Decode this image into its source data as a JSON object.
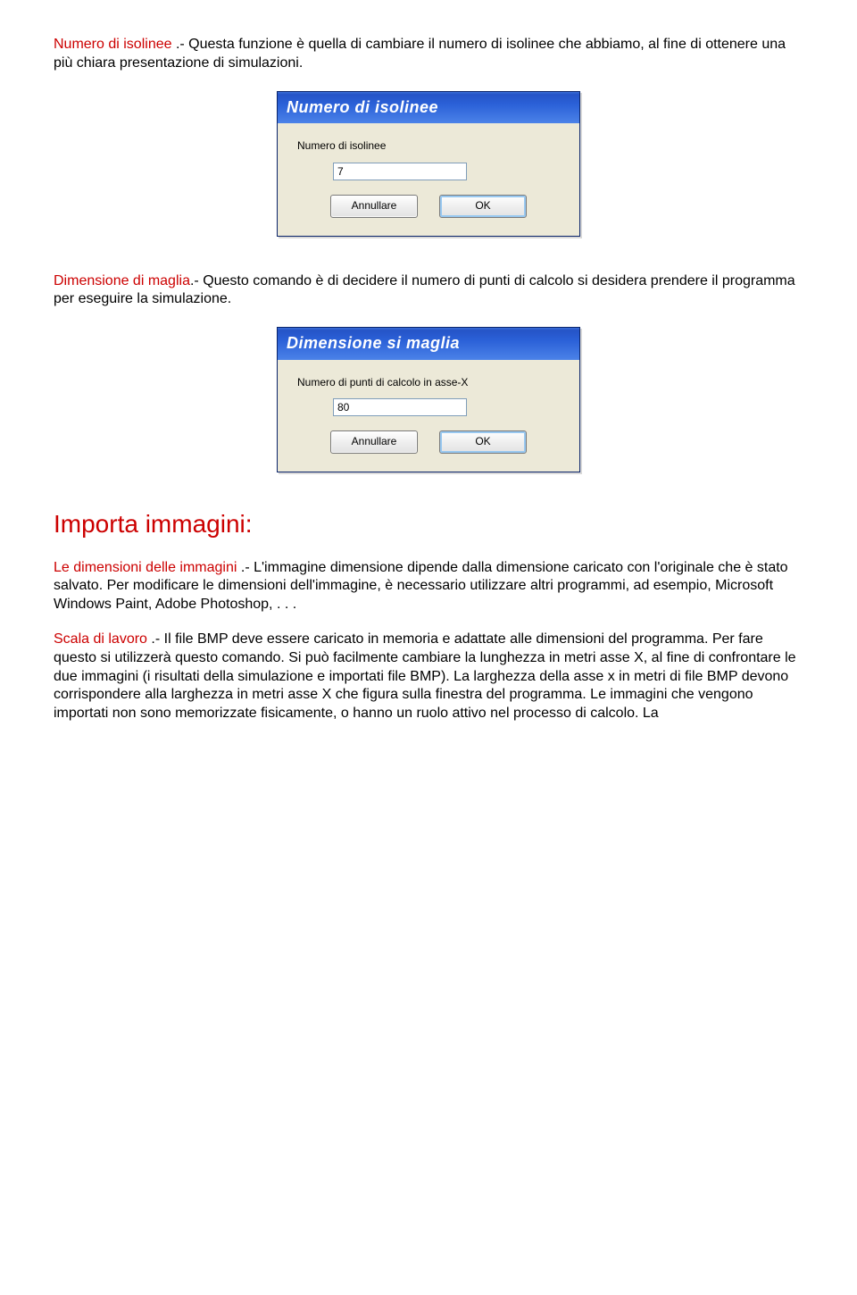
{
  "p1": {
    "term": "Numero di isolinee",
    "text": " .- Questa funzione è quella di cambiare il numero di isolinee che abbiamo, al fine di ottenere una più chiara presentazione di simulazioni."
  },
  "dialog1": {
    "title": "Numero di isolinee",
    "label": "Numero di isolinee",
    "value": "7",
    "cancel": "Annullare",
    "ok": "OK"
  },
  "p2": {
    "term": "Dimensione di maglia",
    "text": ".- Questo comando è di decidere il numero di punti di calcolo si desidera prendere il programma per eseguire la simulazione."
  },
  "dialog2": {
    "title": "Dimensione si maglia",
    "label": "Numero di punti di calcolo in asse-X",
    "value": "80",
    "cancel": "Annullare",
    "ok": "OK"
  },
  "section": "Importa immagini:",
  "p3": {
    "term": "Le dimensioni delle immagini",
    "text": " .- L'immagine dimensione dipende dalla dimensione caricato con l'originale che è stato salvato. Per modificare le dimensioni dell'immagine, è necessario utilizzare altri programmi, ad esempio, Microsoft Windows Paint, Adobe Photoshop, . . ."
  },
  "p4": {
    "term": "Scala di lavoro",
    "text": " .- Il file BMP deve essere caricato in memoria e adattate alle dimensioni del programma. Per fare questo si utilizzerà questo comando. Si può facilmente cambiare la lunghezza in metri asse X, al fine di confrontare le due immagini (i risultati della simulazione e importati file BMP). La larghezza della asse x in metri di file BMP devono corrispondere alla larghezza in metri asse X che figura sulla finestra del programma. Le immagini che vengono importati non sono memorizzate fisicamente, o hanno un ruolo attivo nel processo di calcolo. La"
  }
}
